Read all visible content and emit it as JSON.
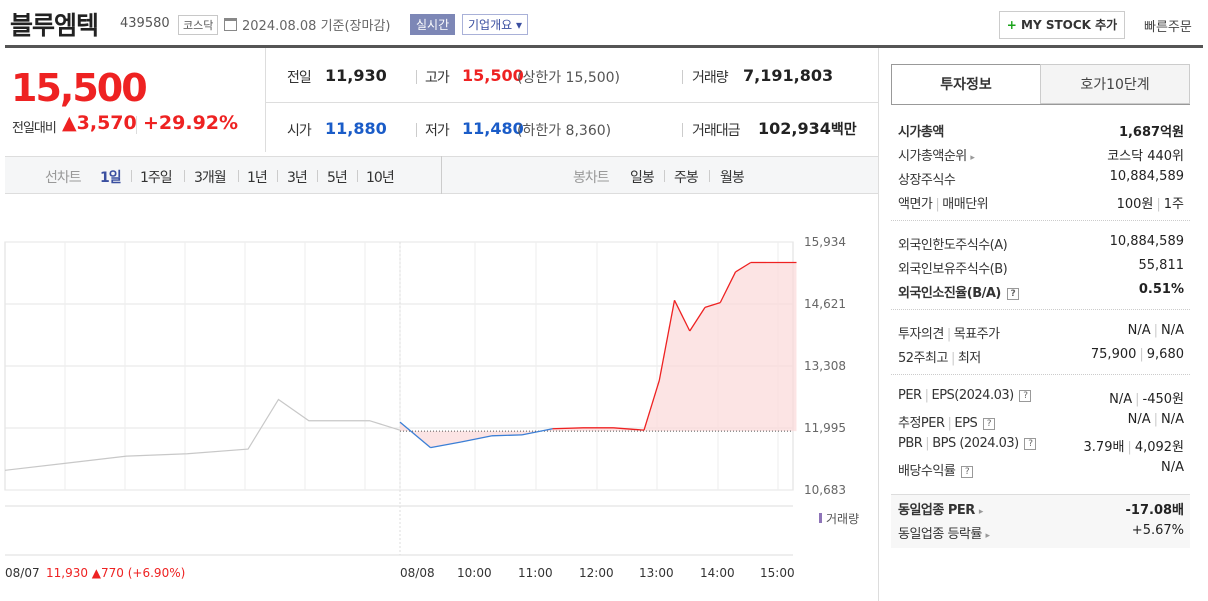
{
  "header": {
    "title": "블루엠텍",
    "code": "439580",
    "market": "코스닥",
    "date": "2024.08.08 기준(장마감)",
    "realtime": "실시간",
    "company_info": "기업개요 ▾",
    "mystock_plus": "+",
    "mystock_label": "MY STOCK 추가",
    "quick_order": "빠른주문"
  },
  "price": {
    "current": "15,500",
    "change_label": "전일대비",
    "change_arrow": "▲",
    "change": "3,570",
    "change_pct": "+29.92%"
  },
  "stats": {
    "prev_label": "전일",
    "prev": "11,930",
    "high_label": "고가",
    "high": "15,500",
    "upper_limit": "(상한가 15,500)",
    "volume_label": "거래량",
    "volume": "7,191,803",
    "open_label": "시가",
    "open": "11,880",
    "low_label": "저가",
    "low": "11,480",
    "lower_limit": "(하한가 8,360)",
    "amount_label": "거래대금",
    "amount": "102,934",
    "amount_unit": "백만"
  },
  "chart_tabs": {
    "line_label": "선차트",
    "periods": [
      "1일",
      "1주일",
      "3개월",
      "1년",
      "3년",
      "5년",
      "10년"
    ],
    "active_period": "1일",
    "candle_label": "봉차트",
    "candles": [
      "일봉",
      "주봉",
      "월봉"
    ]
  },
  "chart_data": {
    "type": "line",
    "series": [
      {
        "name": "",
        "x": [
          "08/07 09:00",
          "08/07 10:00",
          "08/07 11:00",
          "08/07 12:00",
          "08/07 13:00",
          "08/07 13:30",
          "08/07 14:00",
          "08/07 15:00",
          "08/07 15:30",
          "08/08 09:00",
          "08/08 09:30",
          "08/08 10:00",
          "08/08 10:30",
          "08/08 11:00",
          "08/08 11:30",
          "08/08 12:00",
          "08/08 12:30",
          "08/08 13:00",
          "08/08 13:15",
          "08/08 13:30",
          "08/08 13:45",
          "08/08 14:00",
          "08/08 14:15",
          "08/08 14:30",
          "08/08 14:45",
          "08/08 15:00",
          "08/08 15:30"
        ],
        "values": [
          11100,
          11250,
          11400,
          11450,
          11550,
          12600,
          12150,
          12150,
          11950,
          12120,
          11580,
          11700,
          11830,
          11850,
          11980,
          12000,
          12000,
          11950,
          13000,
          14700,
          14050,
          14550,
          14650,
          15300,
          15500,
          15500,
          15500
        ]
      }
    ],
    "baseline": 11930,
    "yticks": [
      "15,934",
      "14,621",
      "13,308",
      "11,995",
      "10,683"
    ],
    "ylim": [
      10683,
      15934
    ],
    "xticks": [
      "08/08",
      "10:00",
      "11:00",
      "12:00",
      "13:00",
      "14:00",
      "15:00"
    ],
    "volume_label": "거래량",
    "prev_day_label": "08/07",
    "prev_day_close": "11,930",
    "prev_day_change": "▲770",
    "prev_day_pct": "(+6.90%)",
    "grid": true
  },
  "invest_tabs": [
    "투자정보",
    "호가10단계"
  ],
  "invest_info": {
    "rows1": [
      {
        "k": "시가총액",
        "v": "1,687억원"
      },
      {
        "k": "시가총액순위",
        "v": "코스닥 440위"
      },
      {
        "k": "상장주식수",
        "v": "10,884,589"
      },
      {
        "k": "액면가",
        "k2": "매매단위",
        "v": "100원",
        "v2": "1주"
      }
    ],
    "rows2": [
      {
        "k": "외국인한도주식수(A)",
        "v": "10,884,589"
      },
      {
        "k": "외국인보유주식수(B)",
        "v": "55,811"
      },
      {
        "k": "외국인소진율(B/A)",
        "v": "0.51%"
      }
    ],
    "rows3": [
      {
        "k": "투자의견",
        "k2": "목표주가",
        "v": "N/A",
        "v2": "N/A"
      },
      {
        "k": "52주최고",
        "k2": "최저",
        "v": "75,900",
        "v2": "9,680"
      }
    ],
    "rows4": [
      {
        "k": "PER",
        "k2": "EPS(2024.03)",
        "v": "N/A",
        "v2": "-450원"
      },
      {
        "k": "추정PER",
        "k2": "EPS",
        "v": "N/A",
        "v2": "N/A"
      },
      {
        "k": "PBR",
        "k2": "BPS (2024.03)",
        "v": "3.79배",
        "v2": "4,092원"
      },
      {
        "k": "배당수익률",
        "v": "N/A"
      }
    ],
    "rows5": [
      {
        "k": "동일업종 PER",
        "v": "-17.08배"
      },
      {
        "k": "동일업종 등락률",
        "v": "+5.67%"
      }
    ],
    "q": "?"
  }
}
